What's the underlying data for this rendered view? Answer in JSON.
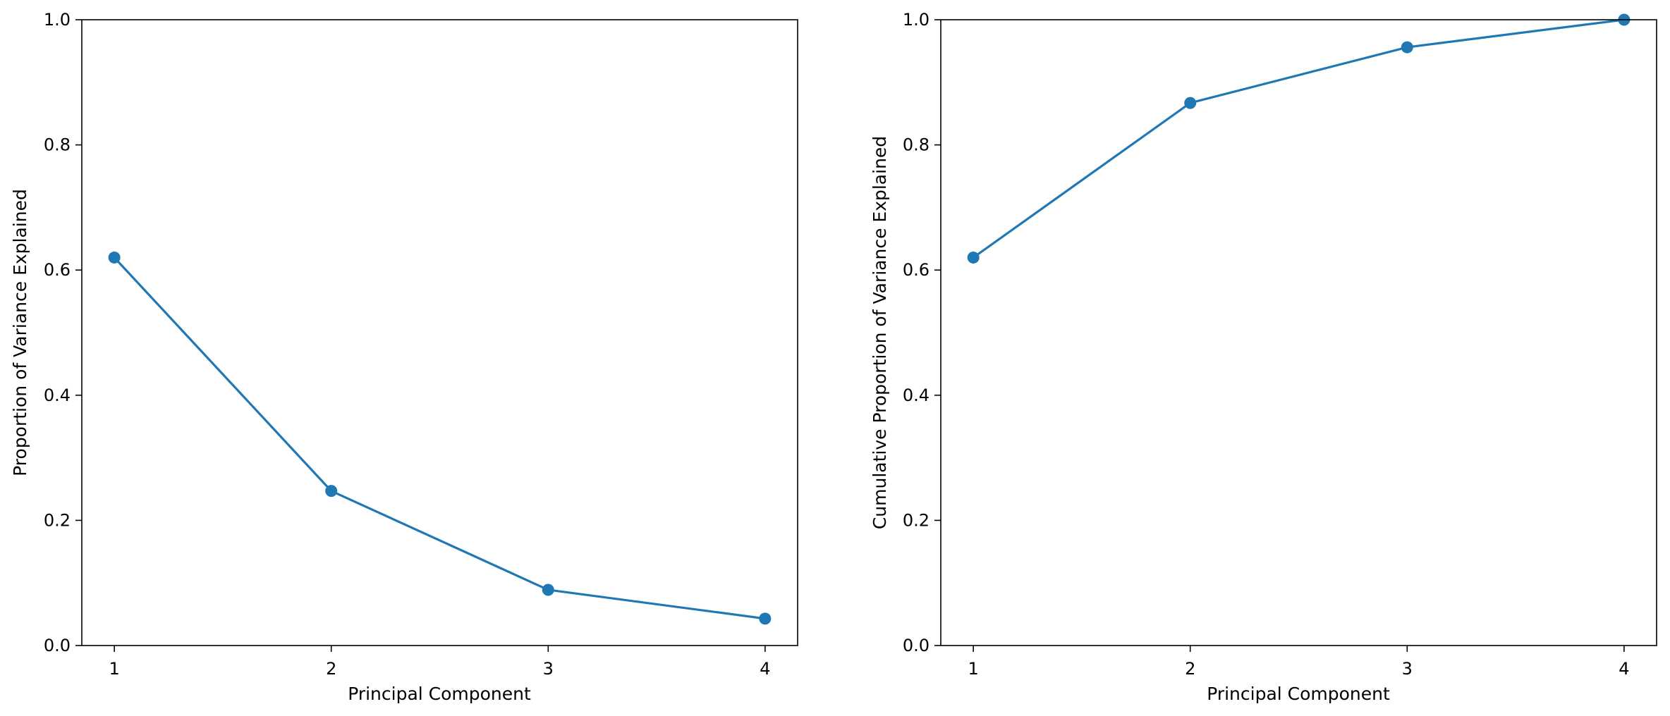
{
  "chart_data": [
    {
      "type": "line",
      "title": "",
      "xlabel": "Principal Component",
      "ylabel": "Proportion of Variance Explained",
      "x": [
        1,
        2,
        3,
        4
      ],
      "x_tick_labels": [
        "1",
        "2",
        "3",
        "4"
      ],
      "y_tick_labels": [
        "0.0",
        "0.2",
        "0.4",
        "0.6",
        "0.8",
        "1.0"
      ],
      "y_ticks": [
        0.0,
        0.2,
        0.4,
        0.6,
        0.8,
        1.0
      ],
      "xlim": [
        0.85,
        4.15
      ],
      "ylim": [
        0.0,
        1.0
      ],
      "series": [
        {
          "values": [
            0.62,
            0.247,
            0.089,
            0.043
          ],
          "color": "#1f77b4",
          "marker": "circle"
        }
      ],
      "grid": false,
      "legend": "none"
    },
    {
      "type": "line",
      "title": "",
      "xlabel": "Principal Component",
      "ylabel": "Cumulative Proportion of Variance Explained",
      "x": [
        1,
        2,
        3,
        4
      ],
      "x_tick_labels": [
        "1",
        "2",
        "3",
        "4"
      ],
      "y_tick_labels": [
        "0.0",
        "0.2",
        "0.4",
        "0.6",
        "0.8",
        "1.0"
      ],
      "y_ticks": [
        0.0,
        0.2,
        0.4,
        0.6,
        0.8,
        1.0
      ],
      "xlim": [
        0.85,
        4.15
      ],
      "ylim": [
        0.0,
        1.0
      ],
      "series": [
        {
          "values": [
            0.62,
            0.867,
            0.956,
            1.0
          ],
          "color": "#1f77b4",
          "marker": "circle"
        }
      ],
      "grid": false,
      "legend": "none"
    }
  ]
}
